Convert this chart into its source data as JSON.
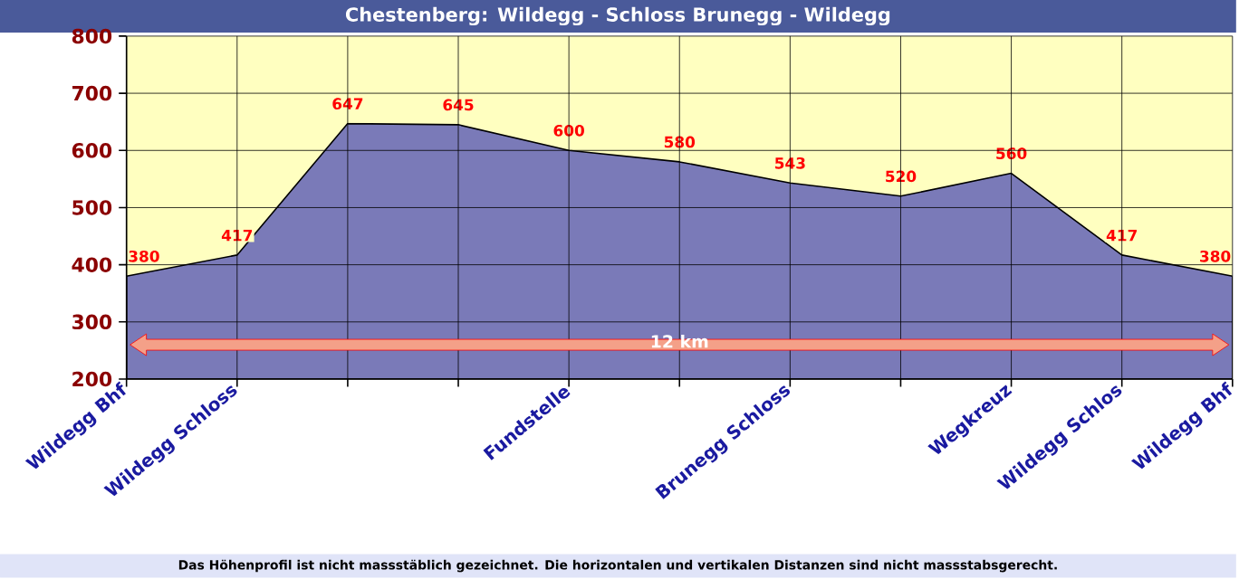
{
  "chart_data": {
    "type": "area",
    "title": "Chestenberg: Wildegg - Schloss Brunegg - Wildegg",
    "categories": [
      "Wildegg Bhf",
      "Wildegg Schloss",
      null,
      null,
      "Fundstelle",
      null,
      "Brunegg Schloss",
      null,
      "Wegkreuz",
      "Wildegg Schlos",
      "Wildegg Bhf"
    ],
    "values": [
      380,
      417,
      647,
      645,
      600,
      580,
      543,
      520,
      560,
      417,
      380
    ],
    "color": "#7a7ab8",
    "ylim": [
      200,
      800
    ],
    "yticks": [
      200,
      300,
      400,
      500,
      600,
      700,
      800
    ],
    "bands": [
      {
        "axis": "y",
        "from": 200,
        "to": 800,
        "color": "#ffffc0"
      }
    ],
    "grid": true,
    "data_labels": true,
    "annotations": [
      "12 km",
      "Das Höhenprofil ist nicht massstäblich gezeichnet. Die horizontalen und vertikalen Distanzen sind nicht massstabsgerecht."
    ]
  }
}
